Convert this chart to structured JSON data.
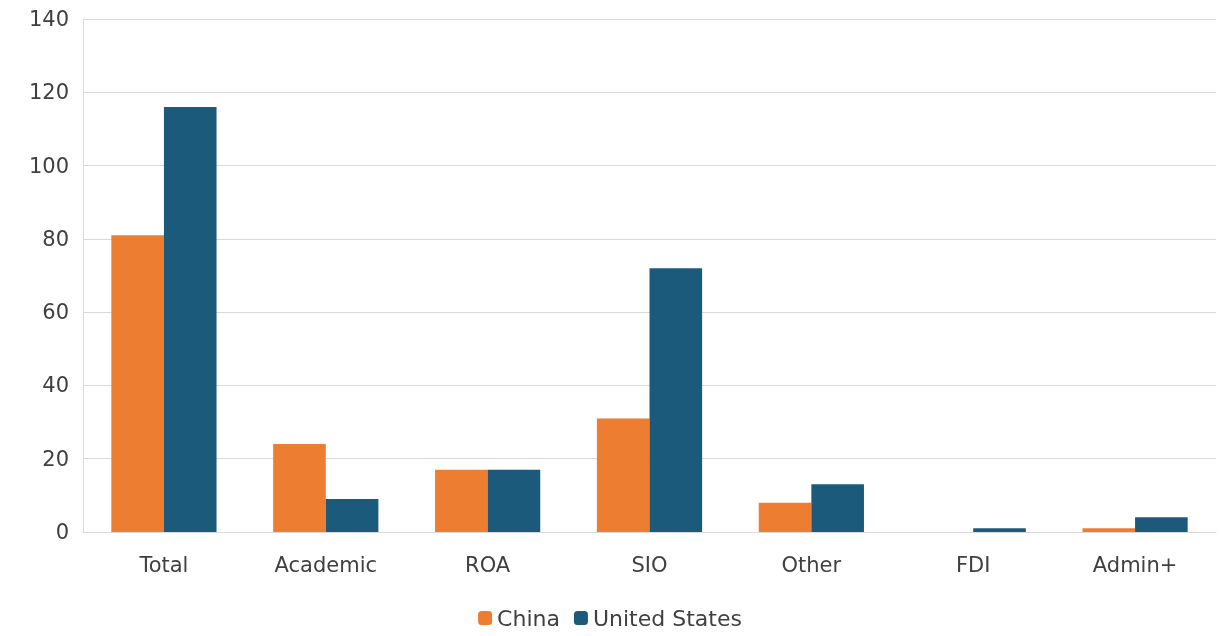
{
  "chart_data": {
    "type": "bar",
    "categories": [
      "Total",
      "Academic",
      "ROA",
      "SIO",
      "Other",
      "FDI",
      "Admin+"
    ],
    "series": [
      {
        "name": "China",
        "color": "#ed7d31",
        "values": [
          81,
          24,
          17,
          31,
          8,
          0,
          1
        ]
      },
      {
        "name": "United States",
        "color": "#1b5a7a",
        "values": [
          116,
          9,
          17,
          72,
          13,
          1,
          4
        ]
      }
    ],
    "ylim": [
      0,
      140
    ],
    "yticks": [
      0,
      20,
      40,
      60,
      80,
      100,
      120,
      140
    ],
    "grid": "y",
    "legend": "bottom"
  }
}
